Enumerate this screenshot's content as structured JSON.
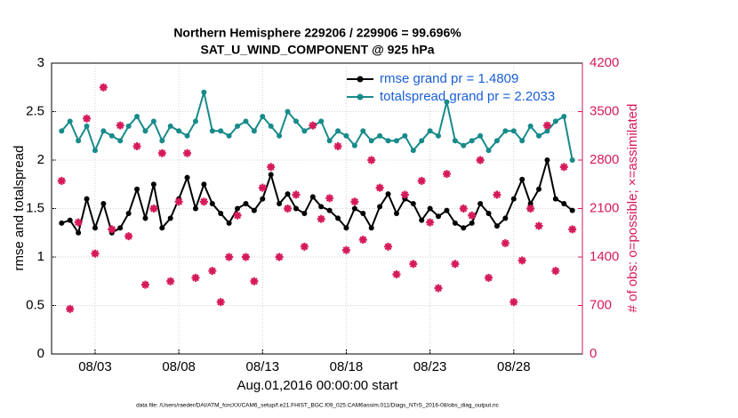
{
  "chart_data": {
    "type": "line",
    "title": "Northern Hemisphere 229206 / 229906 = 99.696%",
    "subtitle": "SAT_U_WIND_COMPONENT @ 925 hPa",
    "xlabel": "Aug.01,2016 00:00:00 start",
    "ylabel": "rmse and totalspread",
    "y2label": "# of obs: o=possible; ×=assimilated",
    "footnote": "data file: /Users/raeder/DAI/ATM_forcXX/CAM6_setup/f.e21.FHIST_BGC.f09_025.CAM6assim.011/Diags_NTrS_2016-08/obs_diag_output.nc",
    "grid": true,
    "legend": "top-right",
    "xlim": [
      0.4,
      32.1
    ],
    "xticks": [
      {
        "value": 3,
        "label": "08/03"
      },
      {
        "value": 8,
        "label": "08/08"
      },
      {
        "value": 13,
        "label": "08/13"
      },
      {
        "value": 18,
        "label": "08/18"
      },
      {
        "value": 23,
        "label": "08/23"
      },
      {
        "value": 28,
        "label": "08/28"
      }
    ],
    "ylim": [
      0,
      3
    ],
    "yticks": [
      0,
      0.5,
      1,
      1.5,
      2,
      2.5,
      3
    ],
    "y2lim": [
      0,
      4200
    ],
    "y2ticks": [
      0,
      700,
      1400,
      2100,
      2800,
      3500,
      4200
    ],
    "x": [
      1,
      1.5,
      2,
      2.5,
      3,
      3.5,
      4,
      4.5,
      5,
      5.5,
      6,
      6.5,
      7,
      7.5,
      8,
      8.5,
      9,
      9.5,
      10,
      10.5,
      11,
      11.5,
      12,
      12.5,
      13,
      13.5,
      14,
      14.5,
      15,
      15.5,
      16,
      16.5,
      17,
      17.5,
      18,
      18.5,
      19,
      19.5,
      20,
      20.5,
      21,
      21.5,
      22,
      22.5,
      23,
      23.5,
      24,
      24.5,
      25,
      25.5,
      26,
      26.5,
      27,
      27.5,
      28,
      28.5,
      29,
      29.5,
      30,
      30.5,
      31,
      31.5
    ],
    "series": [
      {
        "name": "rmse grand pr = 1.4809",
        "color": "#000000",
        "values": [
          1.35,
          1.38,
          1.25,
          1.6,
          1.3,
          1.55,
          1.25,
          1.3,
          1.45,
          1.7,
          1.4,
          1.75,
          1.3,
          1.4,
          1.6,
          1.82,
          1.5,
          1.75,
          1.55,
          1.45,
          1.35,
          1.5,
          1.55,
          1.48,
          1.6,
          1.85,
          1.55,
          1.65,
          1.5,
          1.45,
          1.62,
          1.52,
          1.48,
          1.4,
          1.3,
          1.5,
          1.45,
          1.3,
          1.52,
          1.65,
          1.45,
          1.6,
          1.55,
          1.38,
          1.5,
          1.42,
          1.48,
          1.35,
          1.3,
          1.35,
          1.55,
          1.45,
          1.32,
          1.4,
          1.6,
          1.8,
          1.55,
          1.7,
          2.0,
          1.6,
          1.55,
          1.48
        ]
      },
      {
        "name": "totalspread grand pr = 2.2033",
        "color": "#178a8a",
        "values": [
          2.3,
          2.4,
          2.2,
          2.35,
          2.1,
          2.3,
          2.25,
          2.2,
          2.35,
          2.45,
          2.3,
          2.4,
          2.2,
          2.35,
          2.3,
          2.25,
          2.4,
          2.7,
          2.3,
          2.3,
          2.25,
          2.35,
          2.4,
          2.3,
          2.45,
          2.35,
          2.25,
          2.5,
          2.4,
          2.3,
          2.35,
          2.4,
          2.2,
          2.3,
          2.25,
          2.15,
          2.3,
          2.2,
          2.25,
          2.2,
          2.2,
          2.25,
          2.1,
          2.2,
          2.3,
          2.25,
          2.6,
          2.2,
          2.15,
          2.2,
          2.25,
          2.1,
          2.2,
          2.3,
          2.3,
          2.2,
          2.35,
          2.25,
          2.3,
          2.4,
          2.45,
          2.0
        ]
      },
      {
        "color": "#d6195a",
        "axis": "y2",
        "marker": "star",
        "values": [
          2500,
          650,
          1900,
          3400,
          1450,
          3850,
          1800,
          3300,
          1700,
          3000,
          1000,
          2100,
          2900,
          1050,
          2200,
          2900,
          1100,
          2200,
          1200,
          750,
          1400,
          2000,
          1400,
          1050,
          2400,
          2700,
          1400,
          2100,
          2300,
          1550,
          3300,
          1950,
          2250,
          3000,
          1500,
          2200,
          1650,
          2800,
          2400,
          1550,
          1150,
          2300,
          1300,
          2500,
          1900,
          950,
          2600,
          1300,
          2100,
          2000,
          2800,
          1100,
          2300,
          1600,
          750,
          1350,
          2100,
          1850,
          3300,
          1200,
          2700,
          1800
        ]
      }
    ]
  }
}
